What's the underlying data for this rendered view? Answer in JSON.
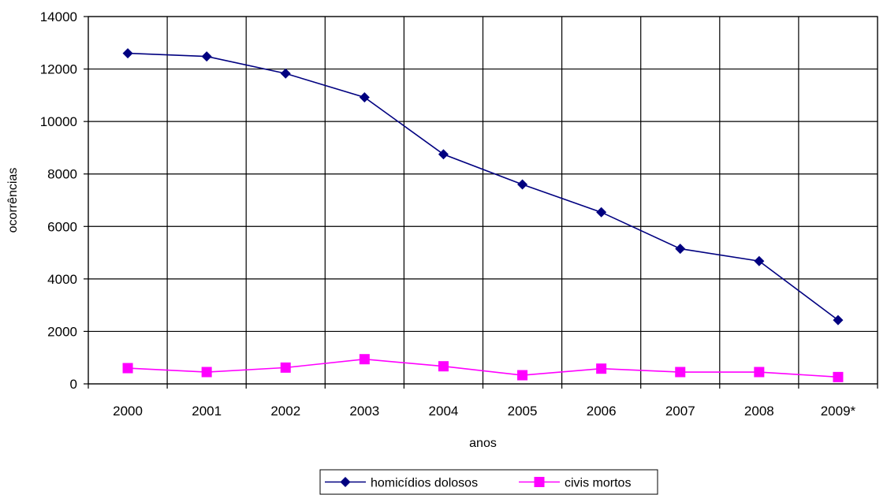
{
  "chart_data": {
    "type": "line",
    "categories": [
      "2000",
      "2001",
      "2002",
      "2003",
      "2004",
      "2005",
      "2006",
      "2007",
      "2008",
      "2009*"
    ],
    "series": [
      {
        "name": "homicídios dolosos",
        "color": "#000080",
        "marker": "diamond",
        "values": [
          12600,
          12480,
          11830,
          10920,
          8750,
          7600,
          6540,
          5150,
          4680,
          2430
        ]
      },
      {
        "name": "civis mortos",
        "color": "#ff00ff",
        "marker": "square",
        "values": [
          600,
          450,
          620,
          940,
          670,
          330,
          580,
          450,
          450,
          260
        ]
      }
    ],
    "title": "",
    "xlabel": "anos",
    "ylabel": "ocorrências",
    "ylim": [
      0,
      14000
    ],
    "yticks": [
      0,
      2000,
      4000,
      6000,
      8000,
      10000,
      12000,
      14000
    ],
    "grid": true,
    "legend_position": "bottom"
  }
}
